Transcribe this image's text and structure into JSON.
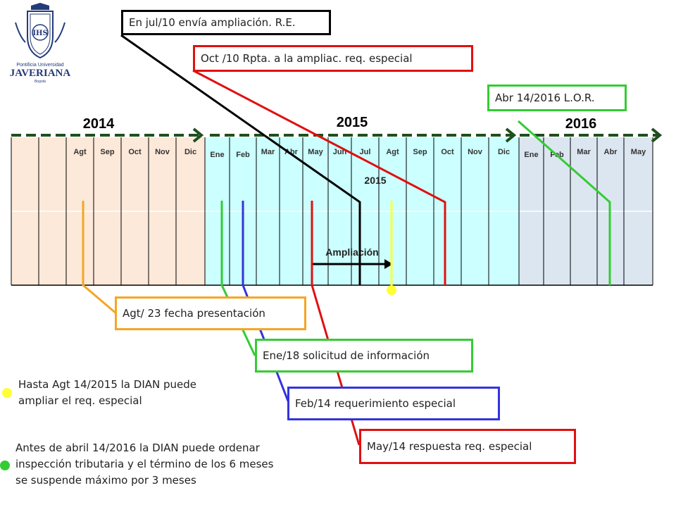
{
  "logo": {
    "line1": "Pontificia Universidad",
    "line2": "JAVERIANA",
    "line3": "Bogotá",
    "seal_text": "IHS",
    "color": "#243a7a"
  },
  "timeline": {
    "years": [
      "2014",
      "2015",
      "2016"
    ],
    "ampliacion_year": "2015",
    "ampliacion_label": "Ampliación",
    "months": [
      "",
      "",
      "Agt",
      "Sep",
      "Oct",
      "Nov",
      "Dic",
      "Ene",
      "Feb",
      "Mar",
      "Abr",
      "May",
      "Jun",
      "Jul",
      "Agt",
      "Sep",
      "Oct",
      "Nov",
      "Dic",
      "Ene",
      "Feb",
      "Mar",
      "Abr",
      "May"
    ],
    "period_colors": {
      "2014": "#fde9d9",
      "2015": "#ccffff",
      "2016": "#dce6f1"
    }
  },
  "callouts": {
    "jul10": "En jul/10 envía ampliación. R.E.",
    "oct10": "Oct /10 Rpta. a la ampliac. req. especial",
    "abr14": "Abr 14/2016 L.O.R.",
    "agt23": "Agt/ 23 fecha presentación",
    "ene18": "Ene/18 solicitud de información",
    "feb14": "Feb/14 requerimiento especial",
    "may14": "May/14 respuesta req. especial"
  },
  "notes": {
    "yellow_line1": "Hasta Agt 14/2015 la DIAN puede",
    "yellow_line2": "ampliar el req. especial",
    "green_line1": "Antes de abril 14/2016 la DIAN puede ordenar",
    "green_line2": "inspección tributaria y el término de los 6 meses",
    "green_line3": "se suspende máximo por 3 meses"
  },
  "colors": {
    "orange": "#f5a623",
    "green": "#33cc33",
    "blue": "#3333dd",
    "red": "#e01010",
    "black": "#000000",
    "yellow": "#ffff33",
    "arrow": "#1f4f1f"
  }
}
